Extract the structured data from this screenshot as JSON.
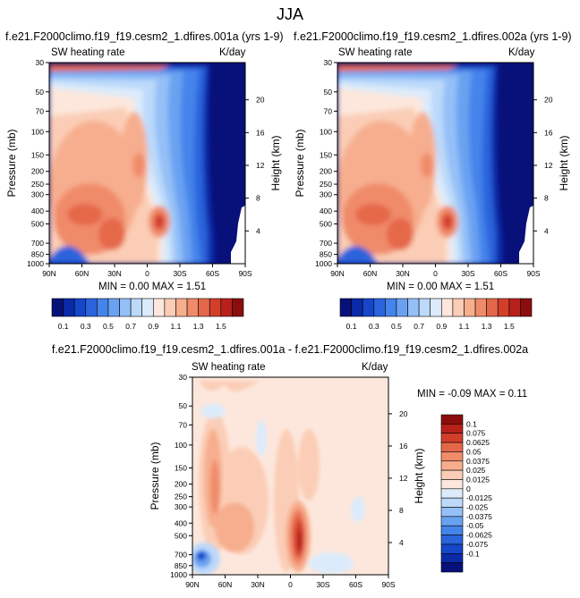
{
  "page_title": "JJA",
  "panels": [
    {
      "title": "f.e21.F2000climo.f19_f19.cesm2_1.dfires.001a (yrs 1-9)",
      "left_label": "SW heating rate",
      "right_label": "K/day",
      "y_axis_label": "Pressure (mb)",
      "right_axis_label": "Height (km)",
      "stats": "MIN =  0.00  MAX =  1.51"
    },
    {
      "title": "f.e21.F2000climo.f19_f19.cesm2_1.dfires.002a (yrs 1-9)",
      "left_label": "SW heating rate",
      "right_label": "K/day",
      "y_axis_label": "Pressure (mb)",
      "right_axis_label": "Height (km)",
      "stats": "MIN =  0.00  MAX =  1.51"
    },
    {
      "title": "f.e21.F2000climo.f19_f19.cesm2_1.dfires.001a - f.e21.F2000climo.f19_f19.cesm2_1.dfires.002a",
      "left_label": "SW heating rate",
      "right_label": "K/day",
      "y_axis_label": "Pressure (mb)",
      "right_axis_label": "Height (km)",
      "stats": "MIN = -0.09  MAX =  0.11"
    }
  ],
  "chart_data": [
    {
      "type": "heatmap",
      "title": "f.e21.F2000climo.f19_f19.cesm2_1.dfires.001a (yrs 1-9)",
      "xlabel": "",
      "ylabel": "Pressure (mb)",
      "x_ticks": [
        "90N",
        "60N",
        "30N",
        "0",
        "30S",
        "60S",
        "90S"
      ],
      "y_ticks": [
        "30",
        "50",
        "70",
        "100",
        "150",
        "200",
        "250",
        "300",
        "400",
        "500",
        "700",
        "850",
        "1000"
      ],
      "right_ticks": [
        "20",
        "16",
        "12",
        "8",
        "4"
      ],
      "colorbar_ticks": [
        "0.1",
        "0.3",
        "0.5",
        "0.7",
        "0.9",
        "1.1",
        "1.3",
        "1.5"
      ],
      "min": 0.0,
      "max": 1.51
    },
    {
      "type": "heatmap",
      "title": "f.e21.F2000climo.f19_f19.cesm2_1.dfires.002a (yrs 1-9)",
      "xlabel": "",
      "ylabel": "Pressure (mb)",
      "x_ticks": [
        "90N",
        "60N",
        "30N",
        "0",
        "30S",
        "60S",
        "90S"
      ],
      "y_ticks": [
        "30",
        "50",
        "70",
        "100",
        "150",
        "200",
        "250",
        "300",
        "400",
        "500",
        "700",
        "850",
        "1000"
      ],
      "right_ticks": [
        "20",
        "16",
        "12",
        "8",
        "4"
      ],
      "colorbar_ticks": [
        "0.1",
        "0.3",
        "0.5",
        "0.7",
        "0.9",
        "1.1",
        "1.3",
        "1.5"
      ],
      "min": 0.0,
      "max": 1.51
    },
    {
      "type": "heatmap",
      "title": "f.e21.F2000climo.f19_f19.cesm2_1.dfires.001a - f.e21.F2000climo.f19_f19.cesm2_1.dfires.002a",
      "xlabel": "",
      "ylabel": "Pressure (mb)",
      "x_ticks": [
        "90N",
        "60N",
        "30N",
        "0",
        "30S",
        "60S",
        "90S"
      ],
      "y_ticks": [
        "30",
        "50",
        "70",
        "100",
        "150",
        "200",
        "250",
        "300",
        "400",
        "500",
        "700",
        "850",
        "1000"
      ],
      "right_ticks": [
        "20",
        "16",
        "12",
        "8",
        "4"
      ],
      "colorbar_ticks": [
        "0.1",
        "0.075",
        "0.0625",
        "0.05",
        "0.0375",
        "0.025",
        "0.0125",
        "0",
        "-0.0125",
        "-0.025",
        "-0.0375",
        "-0.05",
        "-0.0625",
        "-0.075",
        "-0.1"
      ],
      "min": -0.09,
      "max": 0.11
    }
  ],
  "colors": {
    "seq_palette": [
      "#08107a",
      "#0b2aa8",
      "#1646c9",
      "#2a63dc",
      "#4584ea",
      "#6aa2f2",
      "#94c0f7",
      "#bcd9fa",
      "#dcebfb",
      "#fde7dc",
      "#fbcdb6",
      "#f7ae8e",
      "#f08b6a",
      "#e5674a",
      "#d33e2b",
      "#b8201a",
      "#8c0d0d"
    ],
    "diff_palette": [
      "#08107a",
      "#0b2aa8",
      "#1646c9",
      "#2a63dc",
      "#4584ea",
      "#6aa2f2",
      "#94c0f7",
      "#bcd9fa",
      "#dcebfb",
      "#fde7dc",
      "#fbcdb6",
      "#f7ae8e",
      "#f08b6a",
      "#e5674a",
      "#d33e2b",
      "#b8201a",
      "#8c0d0d"
    ]
  }
}
